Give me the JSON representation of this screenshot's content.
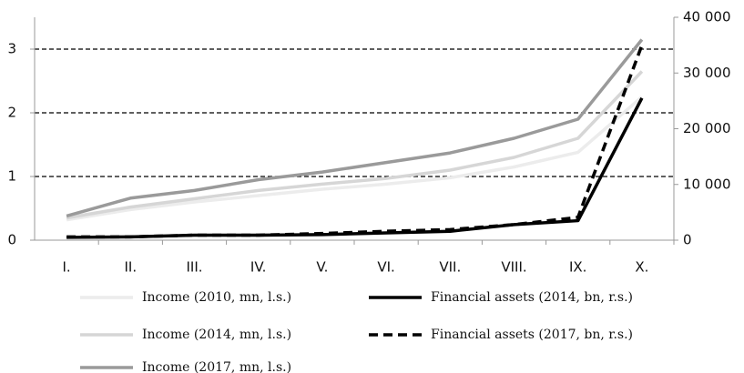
{
  "chart_data": {
    "type": "line",
    "categories": [
      "I.",
      "II.",
      "III.",
      "IV.",
      "V.",
      "VI.",
      "VII.",
      "VIII.",
      "IX.",
      "X."
    ],
    "ylim": [
      0,
      3.5
    ],
    "yticks": [
      0,
      1,
      2,
      3
    ],
    "y2lim": [
      0,
      40000
    ],
    "y2ticks": [
      0,
      {
        "value": 10000,
        "label": "10 000"
      },
      {
        "value": 20000,
        "label": "20 000"
      },
      {
        "value": 30000,
        "label": "30 000"
      },
      {
        "value": 40000,
        "label": "40 000"
      }
    ],
    "grid": true,
    "series": [
      {
        "name": "Income (2010, mn, l.s.)",
        "color": "#ececec",
        "axis": "y",
        "dashed": false,
        "values": [
          0.32,
          0.48,
          0.6,
          0.7,
          0.8,
          0.88,
          0.98,
          1.15,
          1.38,
          2.25
        ]
      },
      {
        "name": "Income (2014, mn, l.s.)",
        "color": "#d6d6d6",
        "axis": "y",
        "dashed": false,
        "values": [
          0.35,
          0.52,
          0.65,
          0.78,
          0.88,
          0.97,
          1.1,
          1.3,
          1.6,
          2.65
        ]
      },
      {
        "name": "Income (2017, mn, l.s.)",
        "color": "#9a9a9a",
        "axis": "y",
        "dashed": false,
        "values": [
          0.38,
          0.66,
          0.78,
          0.95,
          1.07,
          1.22,
          1.37,
          1.6,
          1.9,
          3.15
        ]
      },
      {
        "name": "Financial assets (2014, bn, r.s.)",
        "color": "#000000",
        "axis": "y2",
        "dashed": false,
        "values": [
          500,
          600,
          900,
          900,
          1000,
          1300,
          1600,
          2800,
          3500,
          25500
        ]
      },
      {
        "name": "Financial assets (2017, bn, r.s.)",
        "color": "#000000",
        "axis": "y2",
        "dashed": true,
        "values": [
          600,
          600,
          900,
          900,
          1200,
          1600,
          1900,
          2800,
          4100,
          35000
        ]
      }
    ]
  }
}
